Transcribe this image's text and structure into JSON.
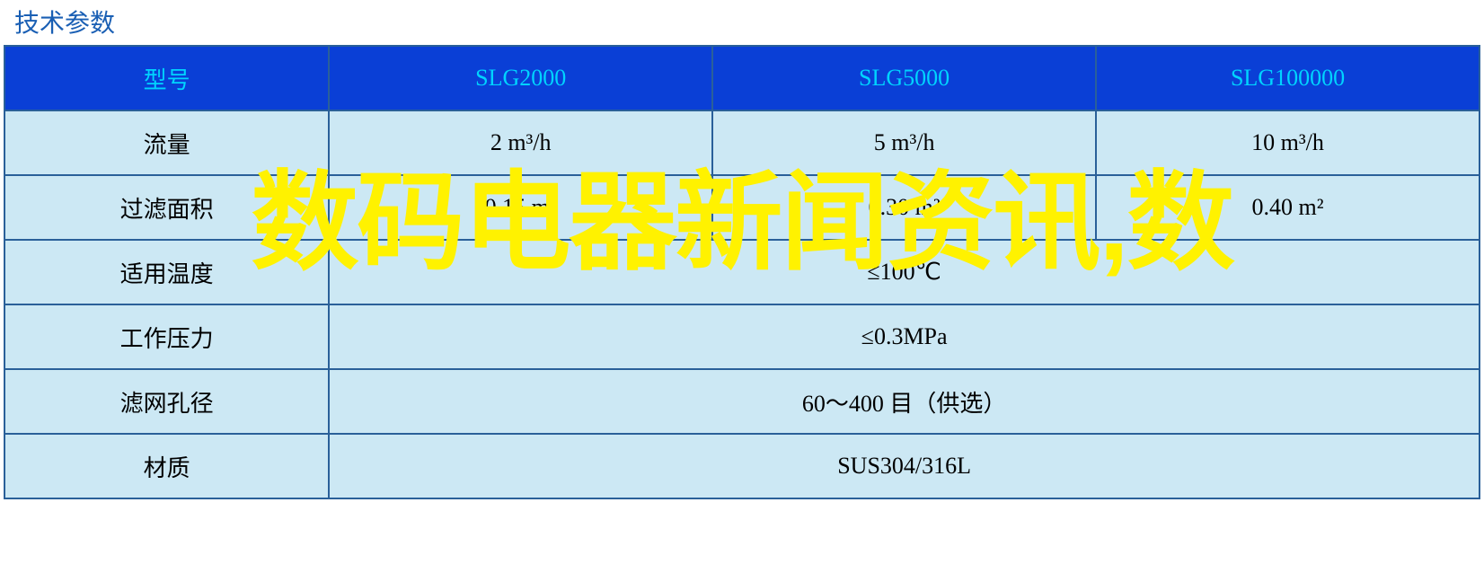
{
  "title": "技术参数",
  "title_color": "#1a5fb4",
  "header_bg": "#0a3fd6",
  "header_text_color": "#00d4ff",
  "cell_bg": "#cce8f4",
  "cell_text_color": "#000000",
  "border_color": "#2a6099",
  "watermark_text": "数码电器新闻资讯,数",
  "watermark_color": "#fff200",
  "headers": {
    "label": "型号",
    "col1": "SLG2000",
    "col2": "SLG5000",
    "col3": "SLG100000"
  },
  "rows": {
    "flow": {
      "label": "流量",
      "v1": "2 m³/h",
      "v2": "5 m³/h",
      "v3": "10 m³/h"
    },
    "area": {
      "label": "过滤面积",
      "v1": "0.15 m²",
      "v2": "0.30 m²",
      "v3": "0.40 m²"
    },
    "temp": {
      "label": "适用温度",
      "merged": "≤100℃"
    },
    "pressure": {
      "label": "工作压力",
      "merged": "≤0.3MPa"
    },
    "mesh": {
      "label": "滤网孔径",
      "merged": "60～400 目（供选）"
    },
    "material": {
      "label": "材质",
      "merged": "SUS304/316L"
    }
  }
}
